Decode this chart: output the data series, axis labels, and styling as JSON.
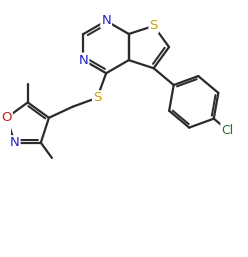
{
  "bg_color": "#ffffff",
  "bond_color": "#2b2b2b",
  "atom_colors": {
    "N": "#2222cc",
    "S": "#c8a000",
    "O": "#cc2222",
    "Cl": "#336633",
    "C": "#2b2b2b"
  },
  "bond_width": 1.6,
  "font_size": 9.5,
  "xlim": [
    -1.7,
    2.1
  ],
  "ylim": [
    -2.3,
    2.0
  ]
}
